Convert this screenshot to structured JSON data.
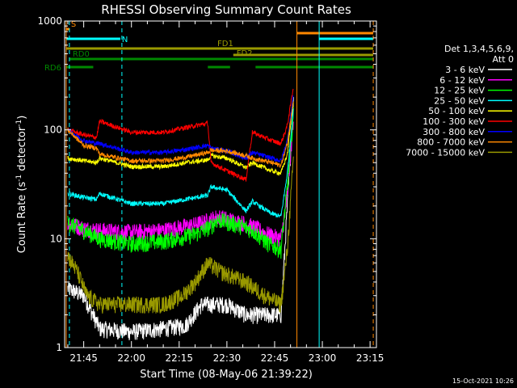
{
  "chart_data": {
    "type": "line",
    "title": "RHESSI Observing Summary Count Rates",
    "xlabel": "Start Time (08-May-06 21:39:22)",
    "ylabel_main": "Count Rate (s",
    "ylabel_sup1": "-1",
    "ylabel_mid": " detector",
    "ylabel_sup2": "-1",
    "ylabel_end": ")",
    "yscale": "log",
    "ylim": [
      1,
      1000
    ],
    "xlim_minutes": [
      -1,
      97
    ],
    "x_unit": "minutes after 21:40",
    "yticks": [
      {
        "value": 1,
        "label": "1"
      },
      {
        "value": 10,
        "label": "10"
      },
      {
        "value": 100,
        "label": "100"
      },
      {
        "value": 1000,
        "label": "1000"
      }
    ],
    "xticks": [
      {
        "value": 5,
        "label": "21:45"
      },
      {
        "value": 20,
        "label": "22:00"
      },
      {
        "value": 35,
        "label": "22:15"
      },
      {
        "value": 50,
        "label": "22:30"
      },
      {
        "value": 65,
        "label": "22:45"
      },
      {
        "value": 80,
        "label": "23:00"
      },
      {
        "value": 95,
        "label": "23:15"
      }
    ],
    "legend_header": [
      "Det 1,3,4,5,6,9,",
      "Att 0"
    ],
    "legend_position": "right",
    "series": [
      {
        "name": "3 - 6 keV",
        "color": "#ffffff",
        "points": [
          [
            0,
            3.5
          ],
          [
            5,
            3
          ],
          [
            10,
            1.5
          ],
          [
            20,
            1.4
          ],
          [
            30,
            1.5
          ],
          [
            37,
            1.6
          ],
          [
            42,
            2.5
          ],
          [
            50,
            2.5
          ],
          [
            56,
            2
          ],
          [
            64,
            2
          ],
          [
            67,
            2
          ],
          [
            69,
            20
          ],
          [
            71,
            200
          ]
        ]
      },
      {
        "name": "6 - 12 keV",
        "color": "#ff00ff",
        "points": [
          [
            0,
            14
          ],
          [
            5,
            12.5
          ],
          [
            10,
            12
          ],
          [
            20,
            11.5
          ],
          [
            30,
            12
          ],
          [
            40,
            13.5
          ],
          [
            45,
            15
          ],
          [
            47,
            16
          ],
          [
            55,
            14
          ],
          [
            58,
            13
          ],
          [
            63,
            11
          ],
          [
            67,
            10
          ],
          [
            69,
            25
          ],
          [
            71,
            140
          ]
        ]
      },
      {
        "name": "12 - 25 keV",
        "color": "#00ff00",
        "points": [
          [
            0,
            14
          ],
          [
            5,
            12
          ],
          [
            10,
            10
          ],
          [
            20,
            9
          ],
          [
            30,
            9.5
          ],
          [
            40,
            11
          ],
          [
            45,
            13
          ],
          [
            47,
            15
          ],
          [
            55,
            13
          ],
          [
            58,
            12
          ],
          [
            63,
            9
          ],
          [
            67,
            8
          ],
          [
            69,
            30
          ],
          [
            71,
            150
          ]
        ]
      },
      {
        "name": "25 - 50 keV",
        "color": "#00ffff",
        "points": [
          [
            0,
            26
          ],
          [
            5,
            24
          ],
          [
            9,
            23
          ],
          [
            10,
            26
          ],
          [
            20,
            21
          ],
          [
            30,
            21
          ],
          [
            37,
            23
          ],
          [
            44,
            25
          ],
          [
            45,
            30
          ],
          [
            50,
            28
          ],
          [
            56,
            18
          ],
          [
            58,
            22
          ],
          [
            64,
            17
          ],
          [
            67,
            16
          ],
          [
            69,
            40
          ],
          [
            71,
            170
          ]
        ]
      },
      {
        "name": "50 - 100 keV",
        "color": "#ffff00",
        "points": [
          [
            0,
            55
          ],
          [
            5,
            52
          ],
          [
            9,
            50
          ],
          [
            10,
            55
          ],
          [
            20,
            46
          ],
          [
            30,
            46
          ],
          [
            37,
            50
          ],
          [
            44,
            53
          ],
          [
            45,
            58
          ],
          [
            50,
            55
          ],
          [
            56,
            45
          ],
          [
            58,
            50
          ],
          [
            64,
            42
          ],
          [
            67,
            40
          ],
          [
            69,
            60
          ],
          [
            71,
            200
          ]
        ]
      },
      {
        "name": "100 - 300 keV",
        "color": "#ff0000",
        "points": [
          [
            0,
            100
          ],
          [
            5,
            90
          ],
          [
            9,
            85
          ],
          [
            10,
            120
          ],
          [
            20,
            95
          ],
          [
            30,
            95
          ],
          [
            37,
            105
          ],
          [
            44,
            115
          ],
          [
            45,
            50
          ],
          [
            50,
            42
          ],
          [
            56,
            35
          ],
          [
            58,
            95
          ],
          [
            64,
            80
          ],
          [
            67,
            75
          ],
          [
            69,
            110
          ],
          [
            71,
            260
          ]
        ]
      },
      {
        "name": "300 - 800 keV",
        "color": "#0000ff",
        "points": [
          [
            0,
            100
          ],
          [
            5,
            80
          ],
          [
            9,
            75
          ],
          [
            10,
            75
          ],
          [
            20,
            62
          ],
          [
            30,
            62
          ],
          [
            37,
            66
          ],
          [
            44,
            72
          ],
          [
            45,
            68
          ],
          [
            50,
            64
          ],
          [
            56,
            55
          ],
          [
            58,
            62
          ],
          [
            64,
            55
          ],
          [
            67,
            52
          ],
          [
            69,
            80
          ],
          [
            71,
            220
          ]
        ]
      },
      {
        "name": "800 - 7000 keV",
        "color": "#ff8800",
        "points": [
          [
            0,
            100
          ],
          [
            5,
            72
          ],
          [
            9,
            68
          ],
          [
            10,
            60
          ],
          [
            20,
            52
          ],
          [
            30,
            52
          ],
          [
            37,
            56
          ],
          [
            44,
            62
          ],
          [
            45,
            65
          ],
          [
            50,
            64
          ],
          [
            56,
            58
          ],
          [
            58,
            55
          ],
          [
            64,
            50
          ],
          [
            67,
            47
          ],
          [
            69,
            75
          ],
          [
            71,
            200
          ]
        ]
      },
      {
        "name": "7000 - 15000 keV",
        "color": "#999900",
        "points": [
          [
            0,
            7
          ],
          [
            3,
            5
          ],
          [
            6,
            3
          ],
          [
            10,
            2.5
          ],
          [
            20,
            2.5
          ],
          [
            30,
            2.5
          ],
          [
            36,
            3
          ],
          [
            40,
            4
          ],
          [
            44,
            6
          ],
          [
            48,
            5
          ],
          [
            56,
            4
          ],
          [
            62,
            3
          ],
          [
            67,
            2.5
          ],
          [
            69,
            8
          ],
          [
            71,
            60
          ]
        ]
      }
    ],
    "flag_lines": [
      {
        "label": "S",
        "color": "#ff8800",
        "y": 0,
        "segments": [
          [
            -0.5,
            0.5
          ]
        ],
        "label_at": 1,
        "label_row": "above"
      },
      {
        "label": "N",
        "color": "#00ffff",
        "y": 1,
        "segments": [
          [
            -0.5,
            16.5
          ],
          [
            79,
            96
          ]
        ],
        "label_at": 17,
        "label_row": "beside"
      },
      {
        "label": "FD1",
        "color": "#999900",
        "y": 2,
        "segments": [
          [
            -0.5,
            96
          ]
        ],
        "label_at": 47,
        "label_row": "above"
      },
      {
        "label": "FD2",
        "color": "#999900",
        "y": 3,
        "segments": [
          [
            52,
            96
          ]
        ],
        "label_at": 53,
        "label_row": "below"
      },
      {
        "label": "RD0",
        "color": "#008800",
        "y": 4,
        "segments": [
          [
            0.5,
            96
          ]
        ],
        "label_at": 1.5,
        "label_row": "above"
      },
      {
        "label": "RD6",
        "color": "#008800",
        "y": 5,
        "segments": [
          [
            -0.5,
            8
          ],
          [
            44,
            51
          ],
          [
            59,
            96
          ]
        ],
        "label_at": -6,
        "label_row": "beside"
      }
    ],
    "top_flag_bar": {
      "color": "#ff8800",
      "segments": [
        [
          72,
          96
        ]
      ]
    },
    "vertical_markers": [
      {
        "x": -0.5,
        "color": "#ff8800",
        "style": "solid"
      },
      {
        "x": 0.5,
        "color": "#00ffff",
        "style": "dashed"
      },
      {
        "x": 17,
        "color": "#00ffff",
        "style": "dashed"
      },
      {
        "x": 72,
        "color": "#ff8800",
        "style": "solid"
      },
      {
        "x": 79,
        "color": "#00ffff",
        "style": "solid"
      },
      {
        "x": 96,
        "color": "#ff8800",
        "style": "dashed"
      }
    ],
    "grid": false,
    "footer_date": "15-Oct-2021 10:26"
  }
}
